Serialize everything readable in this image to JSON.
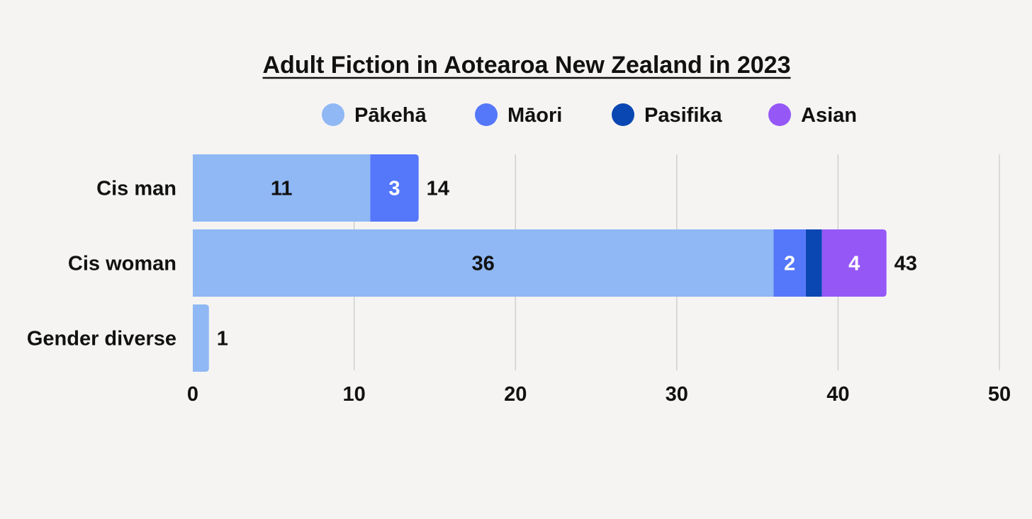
{
  "chart_data": {
    "type": "bar",
    "orientation": "horizontal",
    "stacked": true,
    "title": "Adult Fiction in Aotearoa New Zealand in 2023",
    "title_underlined": true,
    "categories": [
      "Cis man",
      "Cis woman",
      "Gender diverse"
    ],
    "series": [
      {
        "name": "Pākehā",
        "color": "#8fb8f4",
        "label_color": "#111111",
        "values": [
          11,
          36,
          1
        ]
      },
      {
        "name": "Māori",
        "color": "#5577fa",
        "label_color": "#ffffff",
        "values": [
          3,
          2,
          0
        ]
      },
      {
        "name": "Pasifika",
        "color": "#0a47b2",
        "label_color": "#ffffff",
        "values": [
          0,
          1,
          0
        ]
      },
      {
        "name": "Asian",
        "color": "#9558f7",
        "label_color": "#ffffff",
        "values": [
          0,
          4,
          0
        ]
      }
    ],
    "segment_labels": [
      [
        "11",
        "3",
        "",
        ""
      ],
      [
        "36",
        "2",
        "",
        "4"
      ],
      [
        "",
        "",
        "",
        ""
      ]
    ],
    "totals": [
      14,
      43,
      1
    ],
    "xlim": [
      0,
      50
    ],
    "xticks": [
      0,
      10,
      20,
      30,
      40,
      50
    ],
    "tick_labels": [
      "0",
      "10",
      "20",
      "30",
      "40",
      "50"
    ],
    "grid": true,
    "gridline_color": "#c8c8c8",
    "legend_position": "top"
  }
}
